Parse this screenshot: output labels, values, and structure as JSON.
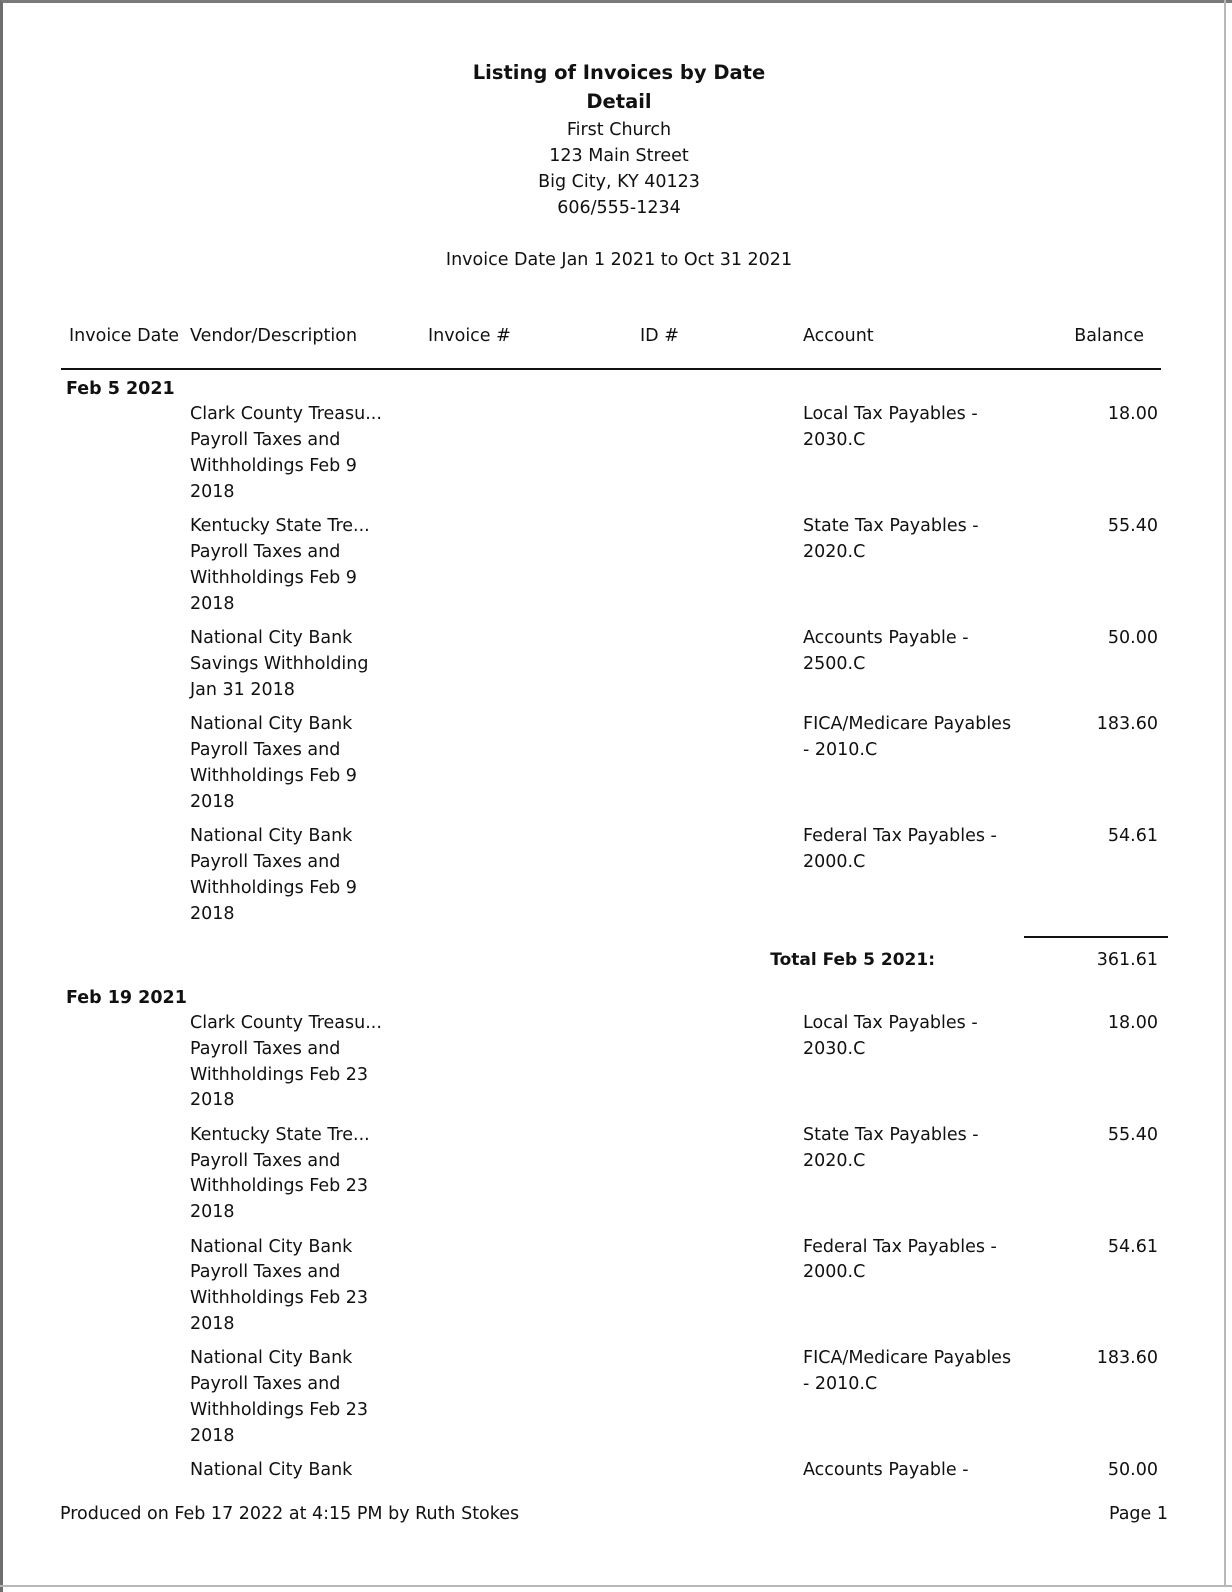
{
  "report": {
    "title": "Listing of Invoices by Date",
    "subtitle": "Detail",
    "org": "First Church",
    "address1": "123 Main Street",
    "address2": "Big City, KY  40123",
    "phone": "606/555-1234",
    "range": "Invoice Date Jan 1 2021 to Oct 31 2021"
  },
  "columns": {
    "date": "Invoice Date",
    "vendor": "Vendor/Description",
    "invoice": "Invoice #",
    "id": "ID #",
    "account": "Account",
    "balance": "Balance"
  },
  "groups": [
    {
      "date": "Feb 5 2021",
      "rows": [
        {
          "vendor": [
            "Clark County Treasu...",
            "Payroll Taxes and",
            "Withholdings Feb 9",
            "2018"
          ],
          "account": [
            "Local Tax Payables -",
            "2030.C"
          ],
          "balance": "18.00"
        },
        {
          "vendor": [
            "Kentucky State Tre...",
            "Payroll Taxes and",
            "Withholdings Feb 9",
            "2018"
          ],
          "account": [
            "State Tax Payables -",
            "2020.C"
          ],
          "balance": "55.40"
        },
        {
          "vendor": [
            "National City Bank",
            "Savings Withholding",
            "Jan 31 2018"
          ],
          "account": [
            "Accounts Payable -",
            "2500.C"
          ],
          "balance": "50.00"
        },
        {
          "vendor": [
            "National City Bank",
            "Payroll Taxes and",
            "Withholdings Feb 9",
            "2018"
          ],
          "account": [
            "FICA/Medicare Payables",
            "- 2010.C"
          ],
          "balance": "183.60"
        },
        {
          "vendor": [
            "National City Bank",
            "Payroll Taxes and",
            "Withholdings Feb 9",
            "2018"
          ],
          "account": [
            "Federal Tax Payables -",
            "2000.C"
          ],
          "balance": "54.61"
        }
      ],
      "total_label": "Total Feb 5 2021:",
      "total": "361.61"
    },
    {
      "date": "Feb 19 2021",
      "rows": [
        {
          "vendor": [
            "Clark County Treasu...",
            "Payroll Taxes and",
            "Withholdings Feb 23",
            "2018"
          ],
          "account": [
            "Local Tax Payables -",
            "2030.C"
          ],
          "balance": "18.00"
        },
        {
          "vendor": [
            "Kentucky State Tre...",
            "Payroll Taxes and",
            "Withholdings Feb 23",
            "2018"
          ],
          "account": [
            "State Tax Payables -",
            "2020.C"
          ],
          "balance": "55.40"
        },
        {
          "vendor": [
            "National City Bank",
            "Payroll Taxes and",
            "Withholdings Feb 23",
            "2018"
          ],
          "account": [
            "Federal Tax Payables -",
            "2000.C"
          ],
          "balance": "54.61"
        },
        {
          "vendor": [
            "National City Bank",
            "Payroll Taxes and",
            "Withholdings Feb 23",
            "2018"
          ],
          "account": [
            "FICA/Medicare Payables",
            "- 2010.C"
          ],
          "balance": "183.60"
        },
        {
          "vendor": [
            "National City Bank"
          ],
          "account": [
            "Accounts Payable -"
          ],
          "balance": "50.00"
        }
      ]
    }
  ],
  "footer": {
    "produced": "Produced on Feb 17 2022 at 4:15 PM by Ruth Stokes",
    "page": "Page 1"
  }
}
